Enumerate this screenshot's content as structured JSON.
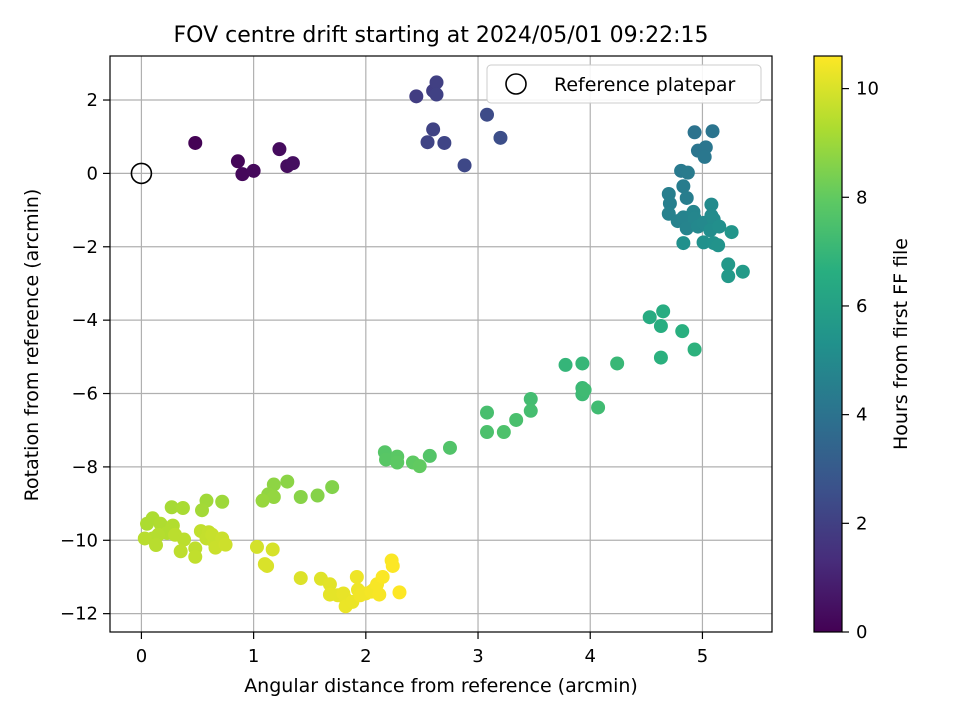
{
  "chart_data": {
    "type": "scatter",
    "title": "FOV centre drift starting at 2024/05/01 09:22:15",
    "xlabel": "Angular distance from reference (arcmin)",
    "ylabel": "Rotation from reference (arcmin)",
    "xlim": [
      -0.28,
      5.62
    ],
    "ylim": [
      -12.5,
      3.2
    ],
    "xticks": [
      0,
      1,
      2,
      3,
      4,
      5
    ],
    "yticks": [
      2,
      0,
      -2,
      -4,
      -6,
      -8,
      -10,
      -12
    ],
    "grid": true,
    "legend": {
      "position": "top-right",
      "entries": [
        "Reference platepar"
      ]
    },
    "reference_point": {
      "x": 0,
      "y": 0,
      "label": "Reference platepar"
    },
    "colorbar": {
      "label": "Hours from first FF file",
      "min": 0,
      "max": 10.6,
      "ticks": [
        0,
        2,
        4,
        6,
        8,
        10
      ],
      "colormap": "viridis"
    },
    "points": [
      {
        "x": 0.48,
        "y": 0.83,
        "c": 0.05
      },
      {
        "x": 0.86,
        "y": 0.33,
        "c": 0.15
      },
      {
        "x": 0.9,
        "y": -0.02,
        "c": 0.2
      },
      {
        "x": 1.0,
        "y": 0.07,
        "c": 0.25
      },
      {
        "x": 1.23,
        "y": 0.66,
        "c": 0.3
      },
      {
        "x": 1.3,
        "y": 0.2,
        "c": 0.35
      },
      {
        "x": 1.35,
        "y": 0.28,
        "c": 0.4
      },
      {
        "x": 2.45,
        "y": 2.1,
        "c": 1.9
      },
      {
        "x": 2.6,
        "y": 2.25,
        "c": 1.95
      },
      {
        "x": 2.63,
        "y": 2.48,
        "c": 2.0
      },
      {
        "x": 2.63,
        "y": 2.15,
        "c": 2.05
      },
      {
        "x": 2.6,
        "y": 1.2,
        "c": 2.1
      },
      {
        "x": 2.55,
        "y": 0.85,
        "c": 2.15
      },
      {
        "x": 2.7,
        "y": 0.83,
        "c": 2.2
      },
      {
        "x": 2.88,
        "y": 0.22,
        "c": 2.3
      },
      {
        "x": 3.08,
        "y": 1.6,
        "c": 2.4
      },
      {
        "x": 3.2,
        "y": 0.97,
        "c": 2.5
      },
      {
        "x": 4.93,
        "y": 1.12,
        "c": 4.0
      },
      {
        "x": 5.09,
        "y": 1.15,
        "c": 4.05
      },
      {
        "x": 4.96,
        "y": 0.62,
        "c": 4.1
      },
      {
        "x": 5.03,
        "y": 0.71,
        "c": 4.15
      },
      {
        "x": 5.02,
        "y": 0.45,
        "c": 4.2
      },
      {
        "x": 4.81,
        "y": 0.07,
        "c": 4.3
      },
      {
        "x": 4.87,
        "y": 0.02,
        "c": 4.35
      },
      {
        "x": 4.83,
        "y": -0.35,
        "c": 4.4
      },
      {
        "x": 4.86,
        "y": -0.67,
        "c": 4.45
      },
      {
        "x": 4.7,
        "y": -0.56,
        "c": 4.5
      },
      {
        "x": 4.71,
        "y": -0.82,
        "c": 4.55
      },
      {
        "x": 4.7,
        "y": -1.1,
        "c": 4.6
      },
      {
        "x": 4.78,
        "y": -1.3,
        "c": 4.65
      },
      {
        "x": 4.83,
        "y": -1.2,
        "c": 4.7
      },
      {
        "x": 4.86,
        "y": -1.5,
        "c": 4.75
      },
      {
        "x": 4.92,
        "y": -1.05,
        "c": 4.8
      },
      {
        "x": 4.93,
        "y": -1.22,
        "c": 4.85
      },
      {
        "x": 4.96,
        "y": -1.45,
        "c": 4.9
      },
      {
        "x": 5.01,
        "y": -1.35,
        "c": 4.95
      },
      {
        "x": 5.08,
        "y": -0.85,
        "c": 5.0
      },
      {
        "x": 5.08,
        "y": -1.15,
        "c": 5.05
      },
      {
        "x": 5.1,
        "y": -1.25,
        "c": 5.1
      },
      {
        "x": 5.07,
        "y": -1.55,
        "c": 5.15
      },
      {
        "x": 5.15,
        "y": -1.45,
        "c": 5.2
      },
      {
        "x": 4.83,
        "y": -1.9,
        "c": 5.25
      },
      {
        "x": 5.01,
        "y": -1.88,
        "c": 5.3
      },
      {
        "x": 5.1,
        "y": -1.9,
        "c": 5.35
      },
      {
        "x": 5.14,
        "y": -1.96,
        "c": 5.4
      },
      {
        "x": 5.26,
        "y": -1.6,
        "c": 5.5
      },
      {
        "x": 5.23,
        "y": -2.48,
        "c": 5.6
      },
      {
        "x": 5.23,
        "y": -2.8,
        "c": 5.65
      },
      {
        "x": 5.36,
        "y": -2.68,
        "c": 5.7
      },
      {
        "x": 4.53,
        "y": -3.92,
        "c": 6.5
      },
      {
        "x": 4.65,
        "y": -3.76,
        "c": 6.55
      },
      {
        "x": 4.63,
        "y": -4.16,
        "c": 6.6
      },
      {
        "x": 4.82,
        "y": -4.3,
        "c": 6.65
      },
      {
        "x": 4.63,
        "y": -5.02,
        "c": 6.7
      },
      {
        "x": 4.93,
        "y": -4.8,
        "c": 6.75
      },
      {
        "x": 3.78,
        "y": -5.22,
        "c": 6.95
      },
      {
        "x": 3.93,
        "y": -5.18,
        "c": 7.0
      },
      {
        "x": 4.24,
        "y": -5.18,
        "c": 7.05
      },
      {
        "x": 3.93,
        "y": -5.85,
        "c": 7.1
      },
      {
        "x": 3.93,
        "y": -6.02,
        "c": 7.15
      },
      {
        "x": 3.95,
        "y": -5.9,
        "c": 7.2
      },
      {
        "x": 4.07,
        "y": -6.38,
        "c": 7.25
      },
      {
        "x": 3.47,
        "y": -6.15,
        "c": 7.3
      },
      {
        "x": 3.47,
        "y": -6.47,
        "c": 7.35
      },
      {
        "x": 3.08,
        "y": -6.52,
        "c": 7.4
      },
      {
        "x": 3.34,
        "y": -6.72,
        "c": 7.45
      },
      {
        "x": 3.08,
        "y": -7.05,
        "c": 7.5
      },
      {
        "x": 3.23,
        "y": -7.05,
        "c": 7.55
      },
      {
        "x": 2.75,
        "y": -7.48,
        "c": 7.65
      },
      {
        "x": 2.57,
        "y": -7.7,
        "c": 7.7
      },
      {
        "x": 2.17,
        "y": -7.6,
        "c": 7.75
      },
      {
        "x": 2.18,
        "y": -7.8,
        "c": 7.8
      },
      {
        "x": 2.28,
        "y": -7.72,
        "c": 7.85
      },
      {
        "x": 2.28,
        "y": -7.88,
        "c": 7.9
      },
      {
        "x": 2.42,
        "y": -7.88,
        "c": 7.95
      },
      {
        "x": 2.48,
        "y": -7.98,
        "c": 8.0
      },
      {
        "x": 1.7,
        "y": -8.55,
        "c": 8.55
      },
      {
        "x": 1.57,
        "y": -8.78,
        "c": 8.6
      },
      {
        "x": 1.42,
        "y": -8.82,
        "c": 8.65
      },
      {
        "x": 1.3,
        "y": -8.4,
        "c": 8.7
      },
      {
        "x": 1.18,
        "y": -8.48,
        "c": 8.75
      },
      {
        "x": 1.13,
        "y": -8.75,
        "c": 8.8
      },
      {
        "x": 1.18,
        "y": -8.82,
        "c": 8.85
      },
      {
        "x": 1.08,
        "y": -8.92,
        "c": 8.9
      },
      {
        "x": 0.72,
        "y": -8.95,
        "c": 9.0
      },
      {
        "x": 0.58,
        "y": -8.92,
        "c": 9.05
      },
      {
        "x": 0.54,
        "y": -9.18,
        "c": 9.1
      },
      {
        "x": 0.27,
        "y": -9.1,
        "c": 9.15
      },
      {
        "x": 0.37,
        "y": -9.12,
        "c": 9.2
      },
      {
        "x": 0.1,
        "y": -9.4,
        "c": 9.25
      },
      {
        "x": 0.05,
        "y": -9.55,
        "c": 9.25
      },
      {
        "x": 0.17,
        "y": -9.55,
        "c": 9.3
      },
      {
        "x": 0.2,
        "y": -9.65,
        "c": 9.3
      },
      {
        "x": 0.28,
        "y": -9.6,
        "c": 9.35
      },
      {
        "x": 0.23,
        "y": -9.8,
        "c": 9.35
      },
      {
        "x": 0.15,
        "y": -9.85,
        "c": 9.4
      },
      {
        "x": 0.1,
        "y": -9.95,
        "c": 9.4
      },
      {
        "x": 0.03,
        "y": -9.95,
        "c": 9.45
      },
      {
        "x": 0.13,
        "y": -10.13,
        "c": 9.45
      },
      {
        "x": 0.3,
        "y": -9.85,
        "c": 9.5
      },
      {
        "x": 0.38,
        "y": -9.98,
        "c": 9.5
      },
      {
        "x": 0.35,
        "y": -10.3,
        "c": 9.55
      },
      {
        "x": 0.48,
        "y": -10.22,
        "c": 9.55
      },
      {
        "x": 0.48,
        "y": -10.45,
        "c": 9.6
      },
      {
        "x": 0.53,
        "y": -9.75,
        "c": 9.6
      },
      {
        "x": 0.6,
        "y": -9.78,
        "c": 9.65
      },
      {
        "x": 0.58,
        "y": -9.95,
        "c": 9.65
      },
      {
        "x": 0.63,
        "y": -9.85,
        "c": 9.7
      },
      {
        "x": 0.65,
        "y": -10.05,
        "c": 9.7
      },
      {
        "x": 0.66,
        "y": -10.2,
        "c": 9.75
      },
      {
        "x": 0.72,
        "y": -9.95,
        "c": 9.75
      },
      {
        "x": 0.75,
        "y": -10.12,
        "c": 9.8
      },
      {
        "x": 1.03,
        "y": -10.18,
        "c": 9.9
      },
      {
        "x": 1.17,
        "y": -10.25,
        "c": 9.95
      },
      {
        "x": 1.1,
        "y": -10.65,
        "c": 10.0
      },
      {
        "x": 1.12,
        "y": -10.7,
        "c": 10.0
      },
      {
        "x": 1.42,
        "y": -11.03,
        "c": 10.05
      },
      {
        "x": 1.6,
        "y": -11.05,
        "c": 10.1
      },
      {
        "x": 1.68,
        "y": -11.2,
        "c": 10.15
      },
      {
        "x": 1.68,
        "y": -11.48,
        "c": 10.2
      },
      {
        "x": 1.75,
        "y": -11.5,
        "c": 10.2
      },
      {
        "x": 1.8,
        "y": -11.45,
        "c": 10.25
      },
      {
        "x": 1.82,
        "y": -11.6,
        "c": 10.25
      },
      {
        "x": 1.82,
        "y": -11.8,
        "c": 10.3
      },
      {
        "x": 1.88,
        "y": -11.68,
        "c": 10.3
      },
      {
        "x": 1.92,
        "y": -11.0,
        "c": 10.35
      },
      {
        "x": 1.93,
        "y": -11.35,
        "c": 10.35
      },
      {
        "x": 1.95,
        "y": -11.5,
        "c": 10.4
      },
      {
        "x": 2.0,
        "y": -11.45,
        "c": 10.4
      },
      {
        "x": 2.05,
        "y": -11.4,
        "c": 10.45
      },
      {
        "x": 2.07,
        "y": -11.35,
        "c": 10.45
      },
      {
        "x": 2.1,
        "y": -11.2,
        "c": 10.5
      },
      {
        "x": 2.12,
        "y": -11.48,
        "c": 10.5
      },
      {
        "x": 2.15,
        "y": -11.0,
        "c": 10.55
      },
      {
        "x": 2.23,
        "y": -10.55,
        "c": 10.55
      },
      {
        "x": 2.24,
        "y": -10.7,
        "c": 10.58
      },
      {
        "x": 2.3,
        "y": -11.42,
        "c": 10.6
      }
    ]
  }
}
